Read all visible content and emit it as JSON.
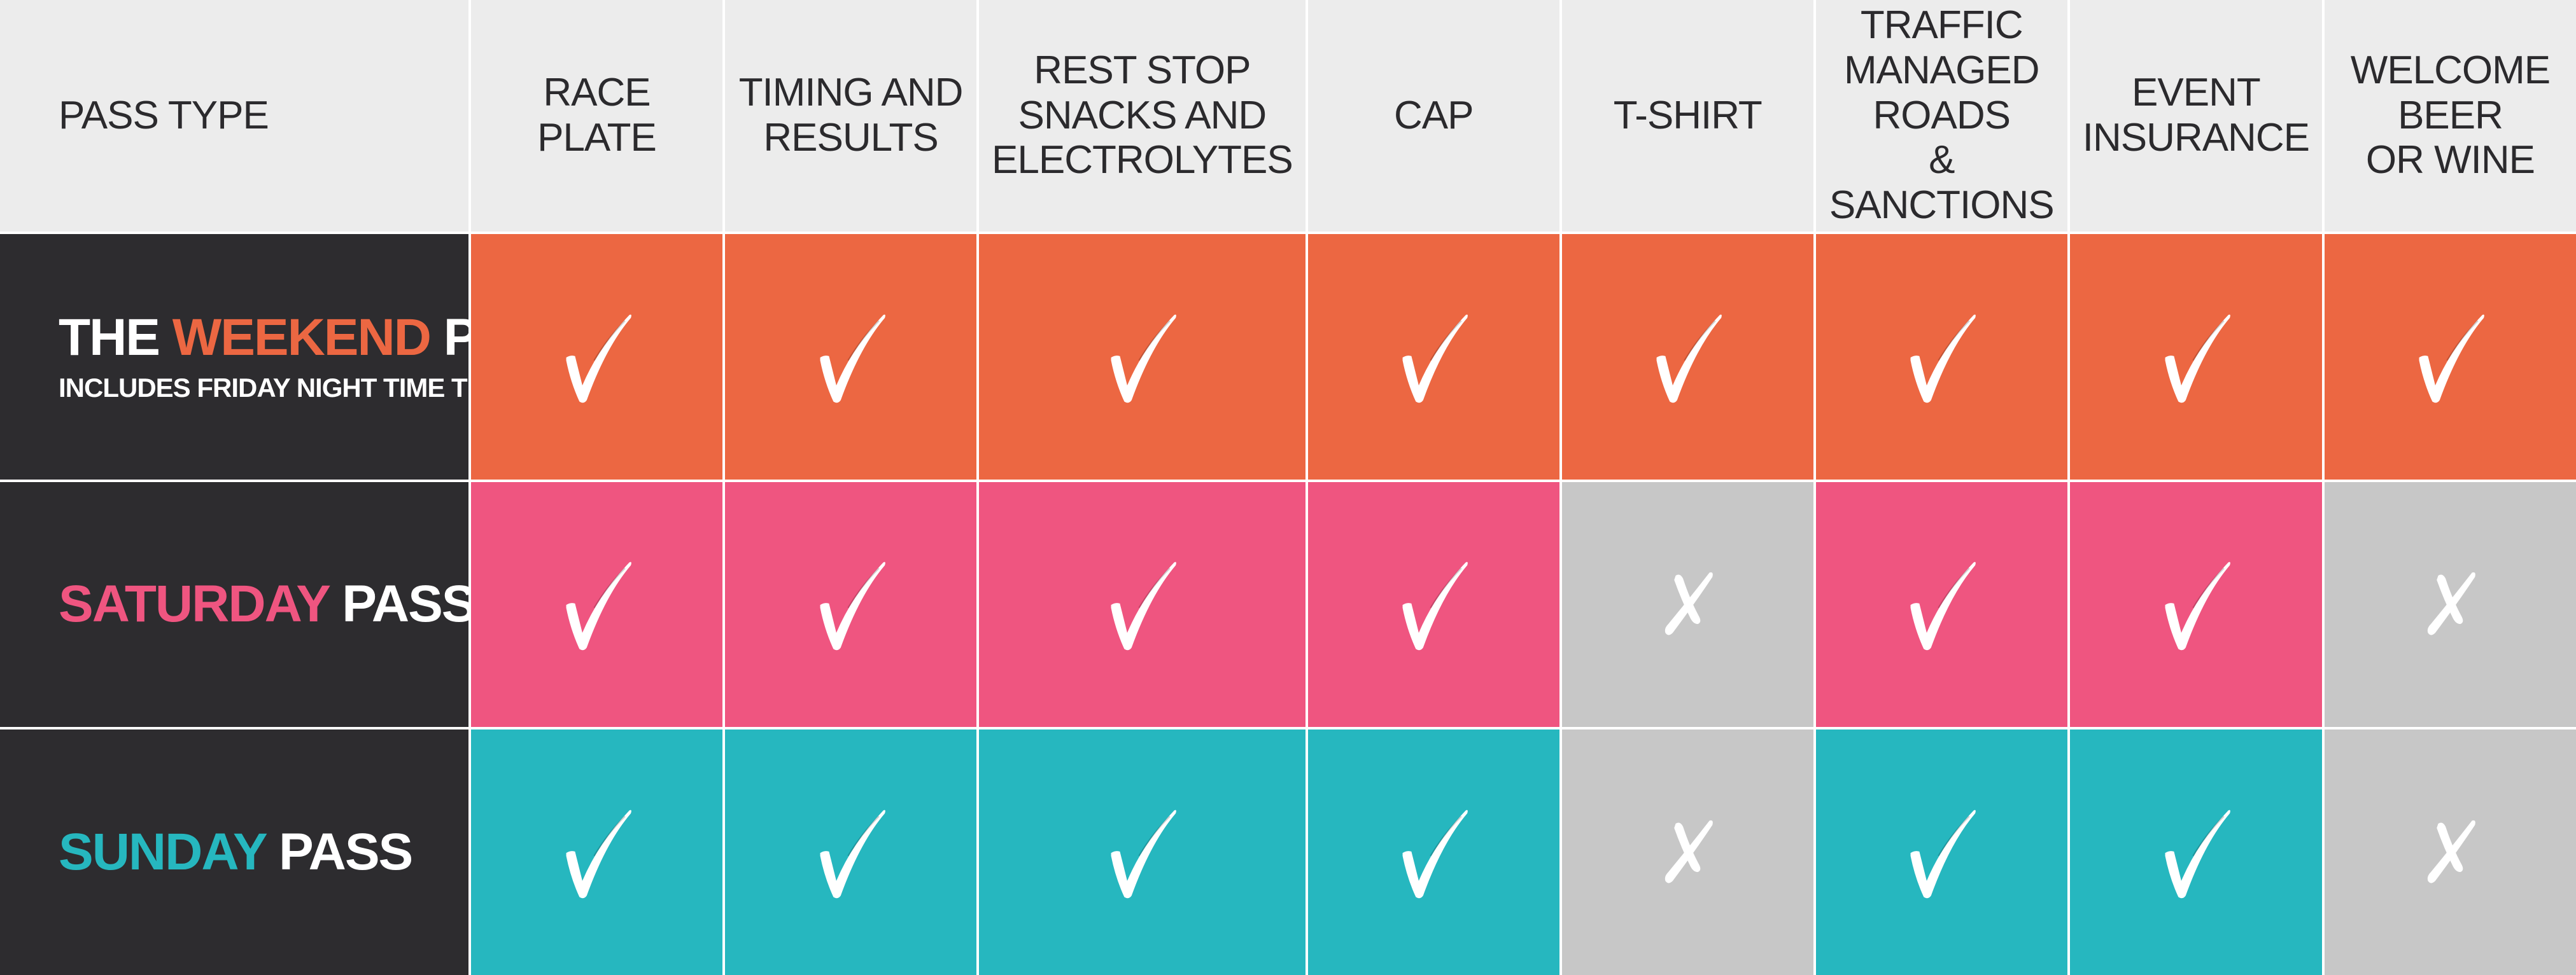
{
  "colors": {
    "header_bg": "#ececec",
    "label_bg": "#2d2c2f",
    "weekend": "#ec6742",
    "saturday": "#ef5580",
    "sunday": "#26b7bf",
    "not_included": "#c7c7c7",
    "mark": "#ffffff"
  },
  "header": {
    "pass_type_label": "PASS TYPE",
    "columns": [
      "RACE PLATE",
      "TIMING AND\nRESULTS",
      "REST STOP\nSNACKS AND\nELECTROLYTES",
      "CAP",
      "T-SHIRT",
      "TRAFFIC\nMANAGED ROADS\n& SANCTIONS",
      "EVENT\nINSURANCE",
      "WELCOME BEER\nOR WINE"
    ]
  },
  "passes": [
    {
      "prefix": "THE ",
      "highlight": "WEEKEND",
      "suffix": " PASS",
      "subtitle": "INCLUDES FRIDAY NIGHT TIME TRIAL",
      "color_key": "weekend",
      "included": [
        true,
        true,
        true,
        true,
        true,
        true,
        true,
        true
      ]
    },
    {
      "prefix": "",
      "highlight": "SATURDAY",
      "suffix": " PASS",
      "subtitle": "",
      "color_key": "saturday",
      "included": [
        true,
        true,
        true,
        true,
        false,
        true,
        true,
        false
      ]
    },
    {
      "prefix": "",
      "highlight": "SUNDAY",
      "suffix": " PASS",
      "subtitle": "",
      "color_key": "sunday",
      "included": [
        true,
        true,
        true,
        true,
        false,
        true,
        true,
        false
      ]
    }
  ],
  "icons": {
    "included": "check-icon",
    "excluded": "cross-icon"
  }
}
